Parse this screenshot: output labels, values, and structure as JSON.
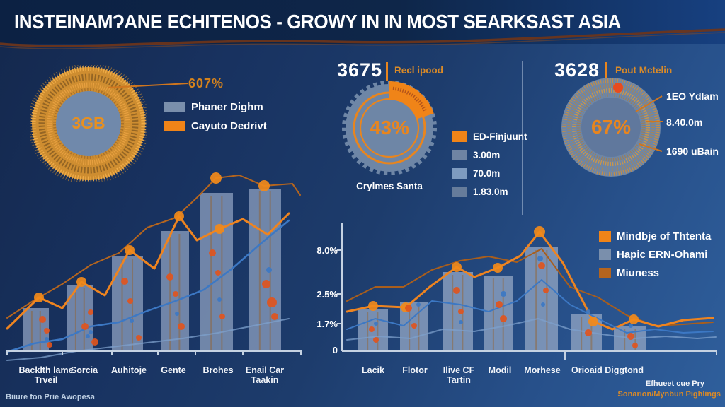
{
  "title": "INSTEINAMɁANE ECHITENOS - GROWY IN IN MOST SEARKSAST ASIA",
  "colors": {
    "background_start": "#14284D",
    "background_end": "#2F5F9C",
    "header": "#0C2143",
    "accent_orange": "#F08418",
    "dark_orange": "#B5651E",
    "slate_bar": "#8497B8",
    "blue_line": "#3C78C4",
    "light_blue_line": "#7DA0CC",
    "wave_line": "#703518"
  },
  "donut_left": {
    "callout_value": "607%",
    "center_value": "3GB",
    "legend": [
      {
        "label": "Phaner Dighm",
        "color": "#7A8FAC"
      },
      {
        "label": "Cayuto Dedrivt",
        "color": "#F08418"
      }
    ]
  },
  "donut_mid": {
    "stat_value": "3675",
    "stat_label": "Recl ipood",
    "center_value": "43%",
    "caption": "Crylmes Santa",
    "legend": [
      {
        "label": "ED-Finjuunt",
        "color": "#F08418"
      },
      {
        "label": "3.00m",
        "color": "#6F84A3"
      },
      {
        "label": "70.0m",
        "color": "#7E9BC0"
      },
      {
        "label": "1.83.0m",
        "color": "#667C9B"
      }
    ]
  },
  "donut_right": {
    "stat_value": "3628",
    "stat_label": "Pout Mctelin",
    "center_value": "67%",
    "callouts": [
      "1EO Ydlam",
      "8.40.0m",
      "1690 uBain"
    ]
  },
  "left_chart": {
    "x_labels": [
      {
        "l1": "Backlth lame",
        "l2": "Trveil"
      },
      {
        "l1": "Sorcia",
        "l2": ""
      },
      {
        "l1": "Auhitoje",
        "l2": ""
      },
      {
        "l1": "Gente",
        "l2": ""
      },
      {
        "l1": "Brohes",
        "l2": ""
      },
      {
        "l1": "Enail Car",
        "l2": "Taakin"
      }
    ]
  },
  "right_chart": {
    "y_labels": [
      "8.0%",
      "2.5%",
      "1.7%",
      "0"
    ],
    "x_labels": [
      {
        "l1": "Lacik",
        "l2": ""
      },
      {
        "l1": "Flotor",
        "l2": ""
      },
      {
        "l1": "Ilive CF",
        "l2": "Tartin"
      },
      {
        "l1": "Modil",
        "l2": ""
      },
      {
        "l1": "Morhese",
        "l2": ""
      },
      {
        "l1": "Orioaid Diggtond",
        "l2": ""
      }
    ],
    "legend": [
      {
        "label": "Mindbje of Thtenta",
        "color": "#F08418"
      },
      {
        "label": "Hapic ERN-Ohami",
        "color": "#7A8FAC"
      },
      {
        "label": "Miuness",
        "color": "#B4641E"
      }
    ]
  },
  "footers": {
    "left": "Biiure fon Prie Awopesa",
    "right_line1": "Efhueet cue Pry",
    "right_line2": "Sonarion/Mynbun Pighlings"
  },
  "chart_data": [
    {
      "type": "pie",
      "subtype": "donut-speckled",
      "title": "",
      "callout": "607%",
      "center_label": "3GB",
      "legend": [
        "Phaner Dighm",
        "Cayuto Dedrivt"
      ],
      "legend_position": "right"
    },
    {
      "type": "pie",
      "subtype": "donut-gear",
      "header_value": "3675",
      "header_label": "Recl ipood",
      "values": [
        43,
        57
      ],
      "labels": [
        "ED-Finjuunt (orange)",
        "remainder (slate)"
      ],
      "center_label": "43%",
      "caption": "Crylmes Santa",
      "legend": [
        "ED-Finjuunt",
        "3.00m",
        "70.0m",
        "1.83.0m"
      ],
      "legend_position": "right"
    },
    {
      "type": "pie",
      "subtype": "donut-speckled",
      "header_value": "3628",
      "header_label": "Pout Mctelin",
      "center_label": "67%",
      "callouts": [
        "1EO Ydlam",
        "8.40.0m",
        "1690 uBain"
      ]
    },
    {
      "type": "bar",
      "title": "",
      "categories": [
        "Backlth lame Trveil",
        "Sorcia",
        "Auhitoje",
        "Gente",
        "Brohes",
        "Enail Car Taakin"
      ],
      "values": [
        27,
        41,
        58,
        74,
        97,
        100
      ],
      "value_note": "relative bar heights 0-100; no y-axis shown",
      "overlay": "two orange trend lines with round markers and two blue lines",
      "source_note": "Biiure fon Prie Awopesa"
    },
    {
      "type": "bar",
      "title": "",
      "categories": [
        "Lacik",
        "Flotor",
        "Ilive CF Tartin",
        "Modil",
        "Morhese",
        "Orioaid Diggtond",
        "Orioaid Diggtond (2nd bar)"
      ],
      "values": [
        3.4,
        3.9,
        6.3,
        6.0,
        8.0,
        2.9,
        2.0
      ],
      "ylabel": "",
      "ytick_labels": [
        "8.0%",
        "2.5%",
        "1.7%",
        "0"
      ],
      "ylim": [
        0,
        9
      ],
      "legend": [
        "Mindbje of Thtenta",
        "Hapic ERN-Ohami",
        "Miuness"
      ],
      "legend_position": "top-right",
      "overlay": "orange marker line peaking at Morhese, brown line, two blue lines"
    }
  ],
  "charts": {
    "left": {
      "baseline": 257,
      "bar_color": "#8497B8",
      "bars": [
        {
          "x": 25,
          "w": 36,
          "top": 196
        },
        {
          "x": 87,
          "w": 36,
          "top": 163
        },
        {
          "x": 150,
          "w": 44,
          "top": 123
        },
        {
          "x": 219,
          "w": 40,
          "top": 87
        },
        {
          "x": 275,
          "w": 46,
          "top": 33
        },
        {
          "x": 344,
          "w": 45,
          "top": 27
        }
      ],
      "lines": [
        {
          "color": "#B5651E",
          "width": 2,
          "points": [
            [
              2,
              210
            ],
            [
              40,
              185
            ],
            [
              80,
              162
            ],
            [
              120,
              135
            ],
            [
              160,
              118
            ],
            [
              200,
              82
            ],
            [
              240,
              68
            ],
            [
              275,
              35
            ],
            [
              297,
              12
            ],
            [
              330,
              8
            ],
            [
              365,
              23
            ],
            [
              405,
              20
            ],
            [
              416,
              36
            ]
          ]
        },
        {
          "color": "#EE8420",
          "width": 3,
          "points": [
            [
              2,
              225
            ],
            [
              47,
              181
            ],
            [
              80,
              196
            ],
            [
              107,
              159
            ],
            [
              140,
              178
            ],
            [
              175,
              114
            ],
            [
              210,
              140
            ],
            [
              245,
              66
            ],
            [
              270,
              100
            ],
            [
              302,
              84
            ],
            [
              335,
              70
            ],
            [
              370,
              92
            ],
            [
              400,
              62
            ]
          ]
        },
        {
          "color": "#3C78C4",
          "width": 2.5,
          "points": [
            [
              2,
              258
            ],
            [
              40,
              246
            ],
            [
              80,
              240
            ],
            [
              120,
              222
            ],
            [
              160,
              216
            ],
            [
              200,
              200
            ],
            [
              240,
              186
            ],
            [
              280,
              170
            ],
            [
              320,
              140
            ],
            [
              360,
              105
            ],
            [
              400,
              72
            ]
          ]
        },
        {
          "color": "#7DA0CC",
          "width": 2,
          "opacity": 0.75,
          "points": [
            [
              2,
              270
            ],
            [
              50,
              266
            ],
            [
              100,
              257
            ],
            [
              150,
              251
            ],
            [
              200,
              245
            ],
            [
              250,
              239
            ],
            [
              300,
              231
            ],
            [
              350,
              221
            ],
            [
              400,
              211
            ]
          ]
        }
      ],
      "dots": [
        [
          47,
          181,
          7,
          "#F28A1A"
        ],
        [
          107,
          159,
          7,
          "#F28A1A"
        ],
        [
          175,
          114,
          7,
          "#F28A1A"
        ],
        [
          245,
          66,
          7,
          "#F28A1A"
        ],
        [
          297,
          12,
          8,
          "#F28A1A"
        ],
        [
          365,
          23,
          8,
          "#F28A1A"
        ],
        [
          302,
          84,
          7,
          "#F28A1A"
        ],
        [
          52,
          212,
          5,
          "#E0551E"
        ],
        [
          58,
          228,
          4,
          "#E0551E"
        ],
        [
          112,
          222,
          5,
          "#E0551E"
        ],
        [
          120,
          202,
          4,
          "#E0551E"
        ],
        [
          168,
          158,
          5,
          "#E0551E"
        ],
        [
          176,
          186,
          4,
          "#E0551E"
        ],
        [
          232,
          152,
          5,
          "#E0551E"
        ],
        [
          240,
          176,
          4,
          "#E0551E"
        ],
        [
          292,
          118,
          5,
          "#E0551E"
        ],
        [
          300,
          146,
          4,
          "#E0551E"
        ],
        [
          368,
          162,
          6,
          "#E0551E"
        ],
        [
          376,
          188,
          7,
          "#E0551E"
        ],
        [
          380,
          208,
          5,
          "#E0551E"
        ],
        [
          62,
          248,
          4,
          "#E0551E"
        ],
        [
          126,
          244,
          5,
          "#E0551E"
        ],
        [
          188,
          238,
          4,
          "#E0551E"
        ],
        [
          248,
          222,
          5,
          "#E0551E"
        ],
        [
          306,
          208,
          4,
          "#E0551E"
        ],
        [
          116,
          236,
          3,
          "#3C78C4"
        ],
        [
          178,
          214,
          3,
          "#3C78C4"
        ],
        [
          242,
          204,
          3,
          "#3C78C4"
        ],
        [
          302,
          184,
          3,
          "#3C78C4"
        ],
        [
          372,
          142,
          4,
          "#3C78C4"
        ],
        [
          58,
          240,
          3,
          "#3C78C4"
        ],
        [
          120,
          230,
          3,
          "#3C78C4"
        ]
      ],
      "axis": {
        "x1": 0,
        "x2": 418,
        "color": "#C5D2E2",
        "xticks": [
          2,
          80,
          150,
          215,
          268,
          335,
          417
        ]
      }
    },
    "right": {
      "baseline": 187,
      "bar_color": "#8BA0C0",
      "bars": [
        {
          "x": 60,
          "w": 43,
          "top": 127
        },
        {
          "x": 120,
          "w": 40,
          "top": 117
        },
        {
          "x": 180,
          "w": 43,
          "top": 75
        },
        {
          "x": 238,
          "w": 42,
          "top": 80
        },
        {
          "x": 297,
          "w": 46,
          "top": 40
        },
        {
          "x": 362,
          "w": 43,
          "top": 135
        },
        {
          "x": 422,
          "w": 46,
          "top": 152
        }
      ],
      "lines": [
        {
          "color": "#A95E1C",
          "width": 2,
          "points": [
            [
              45,
              116
            ],
            [
              85,
              96
            ],
            [
              125,
              96
            ],
            [
              165,
              72
            ],
            [
              205,
              59
            ],
            [
              245,
              53
            ],
            [
              285,
              61
            ],
            [
              320,
              42
            ],
            [
              360,
              96
            ],
            [
              400,
              111
            ],
            [
              440,
              136
            ],
            [
              480,
              151
            ],
            [
              520,
              149
            ],
            [
              562,
              146
            ]
          ]
        },
        {
          "color": "#EE8420",
          "width": 3,
          "points": [
            [
              45,
              131
            ],
            [
              82,
              123
            ],
            [
              128,
              125
            ],
            [
              162,
              96
            ],
            [
              200,
              68
            ],
            [
              225,
              82
            ],
            [
              258,
              69
            ],
            [
              290,
              52
            ],
            [
              317,
              18
            ],
            [
              350,
              62
            ],
            [
              393,
              145
            ],
            [
              420,
              156
            ],
            [
              450,
              142
            ],
            [
              485,
              152
            ],
            [
              520,
              143
            ],
            [
              562,
              140
            ]
          ]
        },
        {
          "color": "#3C78C4",
          "width": 2,
          "points": [
            [
              45,
              156
            ],
            [
              85,
              141
            ],
            [
              125,
              151
            ],
            [
              165,
              116
            ],
            [
              205,
              121
            ],
            [
              245,
              131
            ],
            [
              285,
              116
            ],
            [
              320,
              86
            ],
            [
              360,
              121
            ],
            [
              400,
              141
            ],
            [
              440,
              161
            ],
            [
              480,
              156
            ],
            [
              520,
              161
            ],
            [
              562,
              159
            ]
          ]
        },
        {
          "color": "#7DA0CC",
          "width": 2,
          "opacity": 0.75,
          "points": [
            [
              45,
              171
            ],
            [
              90,
              166
            ],
            [
              135,
              169
            ],
            [
              180,
              156
            ],
            [
              225,
              159
            ],
            [
              270,
              151
            ],
            [
              315,
              141
            ],
            [
              360,
              156
            ],
            [
              405,
              163
            ],
            [
              450,
              169
            ],
            [
              495,
              166
            ],
            [
              540,
              169
            ],
            [
              566,
              167
            ]
          ]
        }
      ],
      "dots": [
        [
          82,
          123,
          7,
          "#F28A1A"
        ],
        [
          128,
          125,
          7,
          "#F28A1A"
        ],
        [
          200,
          68,
          7,
          "#F28A1A"
        ],
        [
          258,
          69,
          7,
          "#F28A1A"
        ],
        [
          317,
          18,
          8,
          "#F28A1A"
        ],
        [
          393,
          145,
          7,
          "#F28A1A"
        ],
        [
          450,
          142,
          7,
          "#F28A1A"
        ],
        [
          80,
          156,
          4,
          "#E0551E"
        ],
        [
          86,
          171,
          4,
          "#E0551E"
        ],
        [
          140,
          151,
          4,
          "#E0551E"
        ],
        [
          200,
          101,
          5,
          "#E0551E"
        ],
        [
          206,
          131,
          4,
          "#E0551E"
        ],
        [
          260,
          121,
          5,
          "#E0551E"
        ],
        [
          266,
          141,
          5,
          "#E0551E"
        ],
        [
          320,
          66,
          5,
          "#E0551E"
        ],
        [
          326,
          101,
          4,
          "#E0551E"
        ],
        [
          386,
          161,
          5,
          "#E0551E"
        ],
        [
          446,
          166,
          5,
          "#E0551E"
        ],
        [
          452,
          179,
          4,
          "#E0551E"
        ],
        [
          132,
          126,
          5,
          "#E0551E"
        ],
        [
          86,
          148,
          3,
          "#3C78C4"
        ],
        [
          146,
          121,
          3,
          "#3C78C4"
        ],
        [
          206,
          146,
          3,
          "#3C78C4"
        ],
        [
          266,
          106,
          4,
          "#3C78C4"
        ],
        [
          322,
          121,
          3,
          "#3C78C4"
        ],
        [
          386,
          131,
          3,
          "#3C78C4"
        ],
        [
          446,
          151,
          3,
          "#3C78C4"
        ],
        [
          318,
          56,
          4,
          "#3C78C4"
        ]
      ],
      "axis": {
        "x1": 38,
        "x2": 567,
        "color": "#C5D2E2",
        "xticks": [
          567
        ],
        "y": {
          "x": 38,
          "y1": 6,
          "y2": 187
        },
        "yticks": [
          44,
          106,
          148
        ],
        "dividers": [
          353
        ]
      }
    }
  }
}
